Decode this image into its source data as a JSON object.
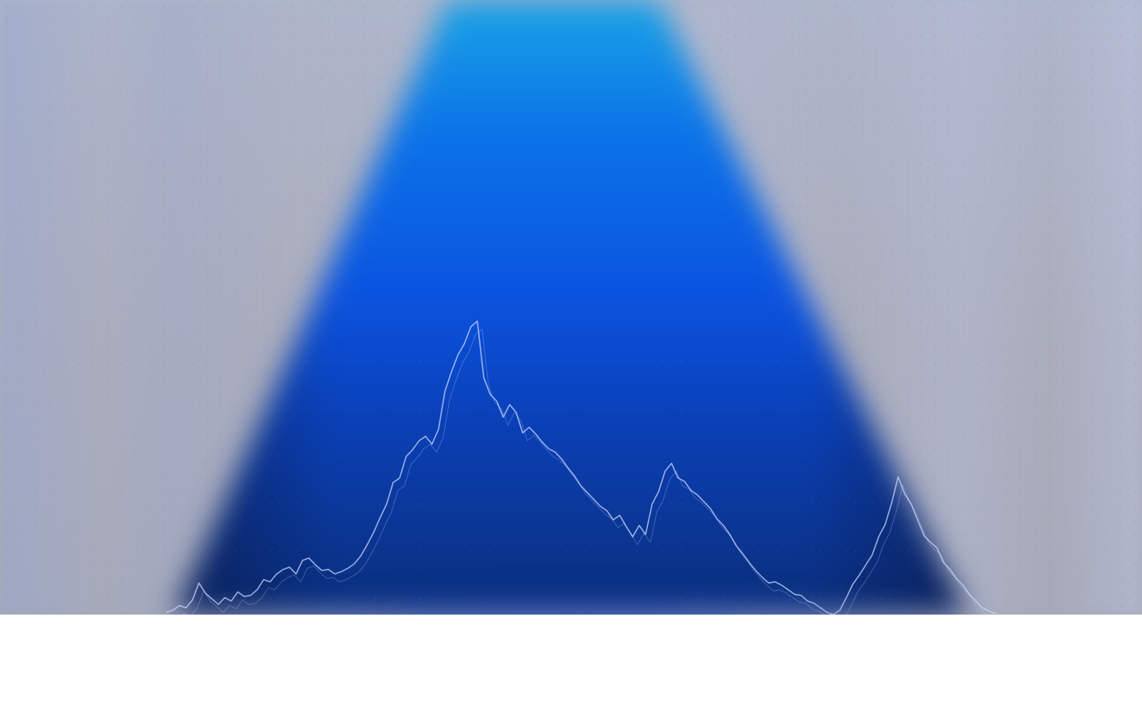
{
  "colors": {
    "background_grey": "#A6A8B8",
    "beam_top_cyan": "#1AA3E6",
    "beam_mid_blue": "#0B53E0",
    "beam_dark_navy": "#0A2E7A",
    "chart_line": "#C8D6FF"
  },
  "chart_data": {
    "type": "line",
    "title": "",
    "xlabel": "",
    "ylabel": "",
    "grid": true,
    "series": [
      {
        "values": [
          0.2,
          0.4,
          0.8,
          0.6,
          1.3,
          2.8,
          1.9,
          1.4,
          0.9,
          1.5,
          1.2,
          2.0,
          1.6,
          1.7,
          2.2,
          3.1,
          2.9,
          3.6,
          4.0,
          4.2,
          3.6,
          4.8,
          5.0,
          4.4,
          3.9,
          4.0,
          3.6,
          3.8,
          4.1,
          4.5,
          5.2,
          6.2,
          7.3,
          8.6,
          9.8,
          11.7,
          12.1,
          14.0,
          14.6,
          15.4,
          15.8,
          15.1,
          16.4,
          19.8,
          21.5,
          23.0,
          24.0,
          25.5,
          26.0,
          21.0,
          19.5,
          18.9,
          17.5,
          18.6,
          17.9,
          16.1,
          16.6,
          16.0,
          15.3,
          14.7,
          14.4,
          13.8,
          13.0,
          12.3,
          11.4,
          10.8,
          10.2,
          9.6,
          9.2,
          8.4,
          8.8,
          7.8,
          6.9,
          7.9,
          7.1,
          9.8,
          10.9,
          12.7,
          13.4,
          12.1,
          11.8,
          11.0,
          10.6,
          10.0,
          9.4,
          8.5,
          7.9,
          7.1,
          6.1,
          5.4,
          4.6,
          3.9,
          3.3,
          2.8,
          2.9,
          2.6,
          2.2,
          1.8,
          1.7,
          1.2,
          1.0,
          0.6,
          0.2,
          0.0,
          0.4,
          1.5,
          2.7,
          3.5,
          4.4,
          5.3,
          6.9,
          8.0,
          9.9,
          12.2,
          10.7,
          9.8,
          8.4,
          7.0,
          6.4,
          5.9,
          4.6,
          4.0,
          3.2,
          2.6,
          1.8,
          1.2,
          0.6,
          0.3,
          0.1
        ]
      }
    ]
  }
}
